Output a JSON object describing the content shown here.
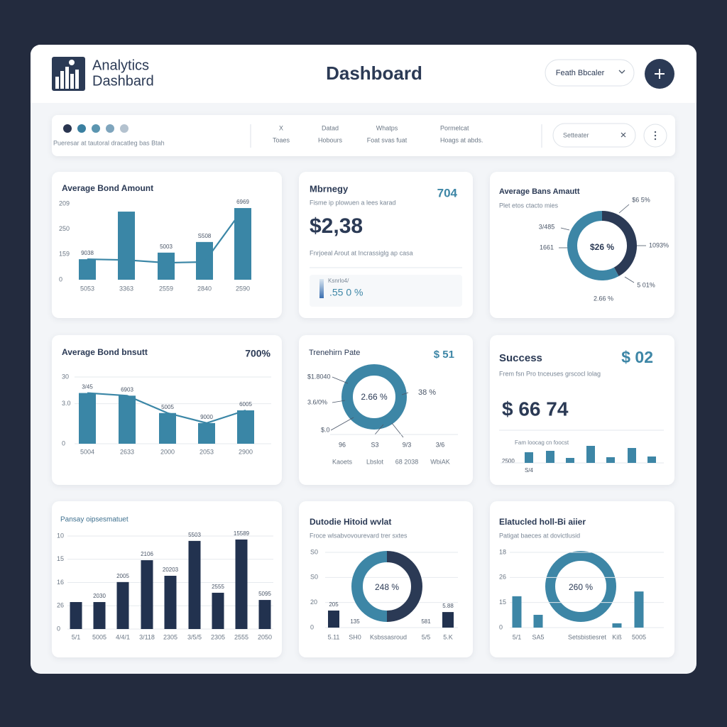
{
  "header": {
    "logo_line1": "Analytics",
    "logo_line2": "Dashbard",
    "title": "Dashboard",
    "dropdown": "Feath Bbcaler"
  },
  "toolbar": {
    "caption": "Pueresar at tautoral dracatleg bas Btah",
    "columns": [
      {
        "top": "X",
        "bottom": "Toaes"
      },
      {
        "top": "Datad",
        "bottom": "Hobours"
      },
      {
        "top": "Whatps",
        "bottom": "Foat svas fuat"
      },
      {
        "top": "Pormelcat",
        "bottom": "Hoags at abds."
      }
    ],
    "filter": "Setteater"
  },
  "cards": [
    {
      "type": "bar",
      "title": "Average Bond Amount",
      "color": "#3a86a6",
      "grid": false,
      "ylim": [
        0,
        300
      ],
      "yticks": [
        0,
        {
          "value": 100,
          "label": "159"
        },
        {
          "value": 200,
          "label": "250"
        },
        {
          "value": 300,
          "label": "209"
        }
      ],
      "categories": [
        "5053",
        "3363",
        "2559",
        "2840",
        "2590"
      ],
      "values": [
        81,
        269,
        107,
        149,
        283
      ],
      "line_values": [
        81,
        78,
        67,
        70,
        278
      ],
      "bar_labels": [
        "9038",
        null,
        "5003",
        "S508",
        "6969"
      ]
    },
    {
      "type": "kpi",
      "title": "Mbrnegy",
      "corner": "704",
      "subtitle": "Fisme ip plowuen a lees karad",
      "value": "$2,38",
      "note": "Fnrjoeal Arout at Incrassiglg ap casa",
      "badge_label": "Ksnrlo4/",
      "badge_value": ".55 0 %"
    },
    {
      "type": "donut",
      "title": "Average Bans Amautt",
      "subtitle": "Plet etos ctacto mies",
      "center": "$26 %",
      "segments": [
        {
          "value": 42,
          "color": "#2b3a55"
        },
        {
          "value": 58,
          "color": "#3d86a6"
        }
      ],
      "labels": [
        "$6 5%",
        "3/485",
        "1661",
        "1093%",
        "5 01%",
        "2.66 %"
      ]
    },
    {
      "type": "bar",
      "title": "Average Bond bnsutt",
      "corner": "700%",
      "color": "#3a86a6",
      "grid": true,
      "ylim": [
        0,
        100
      ],
      "yticks": [
        0,
        {
          "value": 60,
          "label": "3.0"
        },
        {
          "value": 100,
          "label": "30"
        }
      ],
      "categories": [
        "5004",
        "2633",
        "2000",
        "2053",
        "2900"
      ],
      "values": [
        76,
        72,
        46,
        31,
        50
      ],
      "line_values": [
        76,
        72,
        46,
        31,
        50
      ],
      "bar_labels": [
        "3/45",
        "6903",
        "5005",
        "9000",
        "6005"
      ]
    },
    {
      "type": "donut",
      "title": "Trenehirn Pate",
      "corner": "$ 51",
      "center": "2.66 %",
      "labels": [
        "$1.8040",
        "3.6/0%",
        "$.0",
        "38 %"
      ],
      "ticks": [
        "96",
        "S3",
        "9/3",
        "3/6"
      ],
      "categories": [
        "Kaoets",
        "Lbslot",
        "68 2038",
        "WbiAK"
      ]
    },
    {
      "type": "kpi",
      "title": "Success",
      "corner": "$ 02",
      "subtitle": "Frem fsn Pro tnceuses grscocl lolag",
      "value": "$ 66 74",
      "caption": "Fam loocag cn foocst",
      "axis_label": "2500",
      "axis_note": "S/4",
      "color": "#3d86a6",
      "values": [
        15,
        17,
        7,
        24,
        8,
        21,
        9
      ]
    },
    {
      "type": "bar",
      "title": "Pansay oipsesmatuet",
      "color": "#22324f",
      "grid": true,
      "ylim": [
        0,
        40
      ],
      "yticks": [
        0,
        {
          "value": 10,
          "label": "26"
        },
        {
          "value": 20,
          "label": "16"
        },
        {
          "value": 30,
          "label": "15"
        },
        {
          "value": 40,
          "label": "10"
        }
      ],
      "categories": [
        "5/1",
        "5005",
        "4/4/1",
        "3/118",
        "2305",
        "3/5/5",
        "2305",
        "2555",
        "2050"
      ],
      "values": [
        11.6,
        11.6,
        20.2,
        29.6,
        22.9,
        37.9,
        15.6,
        38.5,
        12.5
      ],
      "bar_labels": [
        null,
        "2030",
        "2005",
        "2106",
        "20203",
        "5503",
        "2555",
        "15589",
        "5095"
      ]
    },
    {
      "type": "combo",
      "title": "Dutodie Hitoid wvlat",
      "subtitle": "Froce wlsabvovourevard trer sxtes",
      "color": "#22324f",
      "grid": true,
      "ylim": [
        0,
        30
      ],
      "yticks": [
        0,
        {
          "value": 10,
          "label": "20"
        },
        {
          "value": 20,
          "label": "S0"
        },
        {
          "value": 30,
          "label": "S0"
        }
      ],
      "categories": [
        "5.11",
        "SH0",
        "Ksbssasroud",
        "5/5",
        "5.K"
      ],
      "values": [
        6.8,
        null,
        null,
        null,
        6.2
      ],
      "bar_labels": [
        "205",
        "135",
        null,
        "581",
        "5.88"
      ],
      "center": "248 %",
      "segments": [
        {
          "value": 50,
          "color": "#2b3a55"
        },
        {
          "value": 50,
          "color": "#3d86a6"
        }
      ]
    },
    {
      "type": "combo",
      "title": "Elatucled holl-Bi aiier",
      "subtitle": "Patigat baeces at dovictlusid",
      "color": "#3d86a6",
      "grid": true,
      "ylim": [
        0,
        30
      ],
      "yticks": [
        0,
        {
          "value": 10,
          "label": "15"
        },
        {
          "value": 20,
          "label": "26"
        },
        {
          "value": 30,
          "label": "18"
        }
      ],
      "categories": [
        "5/1",
        "SA5",
        "Setsbistiesret",
        "Kiß",
        "5005"
      ],
      "values": [
        12.5,
        5.1,
        null,
        1.7,
        14.4
      ],
      "center": "260 %"
    }
  ]
}
